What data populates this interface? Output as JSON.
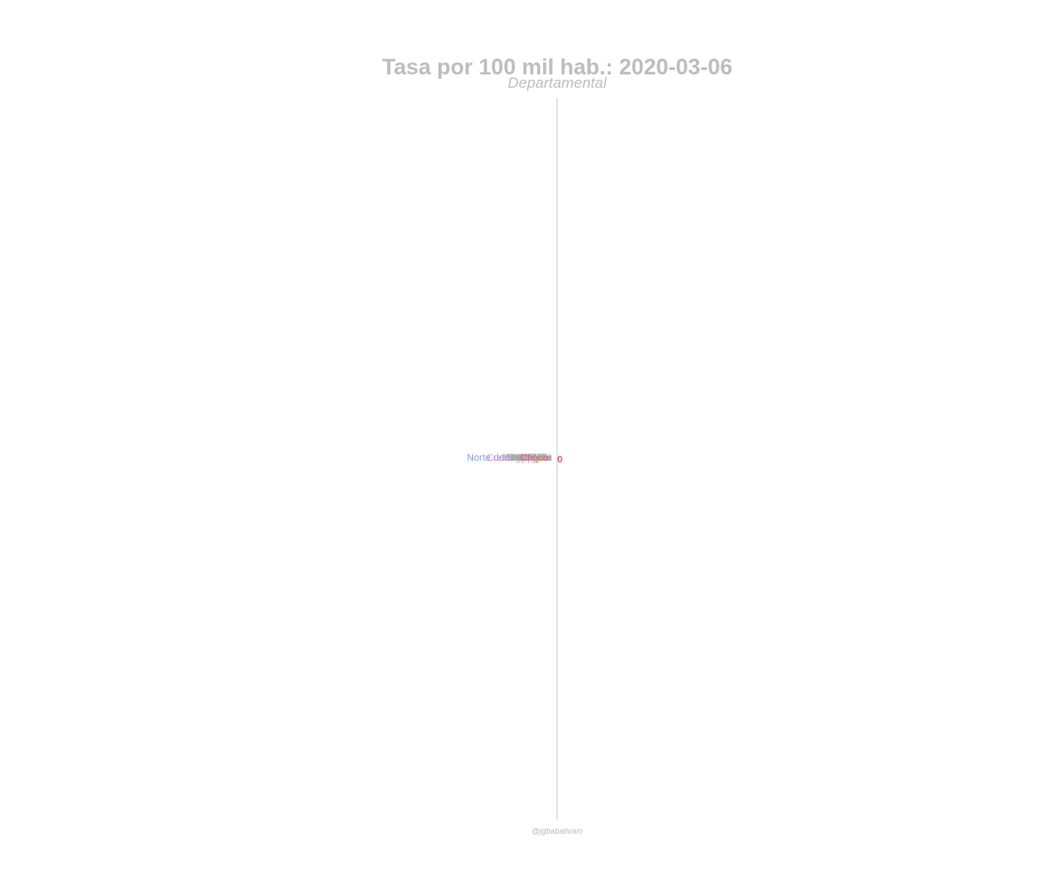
{
  "chart": {
    "title": "Tasa por 100 mil hab.: 2020-03-06",
    "subtitle": "Departamental",
    "caption": "@jgbabativam"
  },
  "chart_data": {
    "type": "bar",
    "orientation": "horizontal",
    "title": "Tasa por 100 mil hab.: 2020-03-06",
    "subtitle": "Departamental",
    "caption": "@jgbabativam",
    "categories": [
      "Norte de Santander",
      "Cundinamarca",
      "Caquetá",
      "Bogotá",
      "Antioquia",
      "Valle",
      "Huila",
      "Meta",
      "Cauca",
      "Tolima",
      "Risaralda",
      "Bolívar",
      "Quindío",
      "Cesar",
      "Santander",
      "Nariño",
      "Caldas",
      "Atlántico",
      "Boyacá",
      "Magdalena",
      "Sucre",
      "Córdoba",
      "La Guajira",
      "Chocó"
    ],
    "label_colors": [
      "#6f8fd6",
      "#e07ad9",
      "#8aa8c8",
      "#c9a45a",
      "#7fb3a3",
      "#d98b6a",
      "#a58ad6",
      "#6fb07a",
      "#d6a04f",
      "#c77fb0",
      "#8fb0d9",
      "#b9a070",
      "#d58ca0",
      "#90c07a",
      "#c48fd0",
      "#7ab3c0",
      "#d0a070",
      "#a0b070",
      "#e08aa0",
      "#9a9ad0",
      "#c0a0c0",
      "#a0c0b0",
      "#d0b080",
      "#d45a9a"
    ],
    "values": [
      0,
      0,
      0,
      0,
      0,
      0,
      0,
      0,
      0,
      0,
      0,
      0,
      0,
      0,
      0,
      0,
      0,
      0,
      0,
      0,
      0,
      0,
      0,
      0
    ],
    "value_label": "0",
    "value_label_color": "#d45a9a",
    "x_baseline": 0,
    "grid": false
  }
}
